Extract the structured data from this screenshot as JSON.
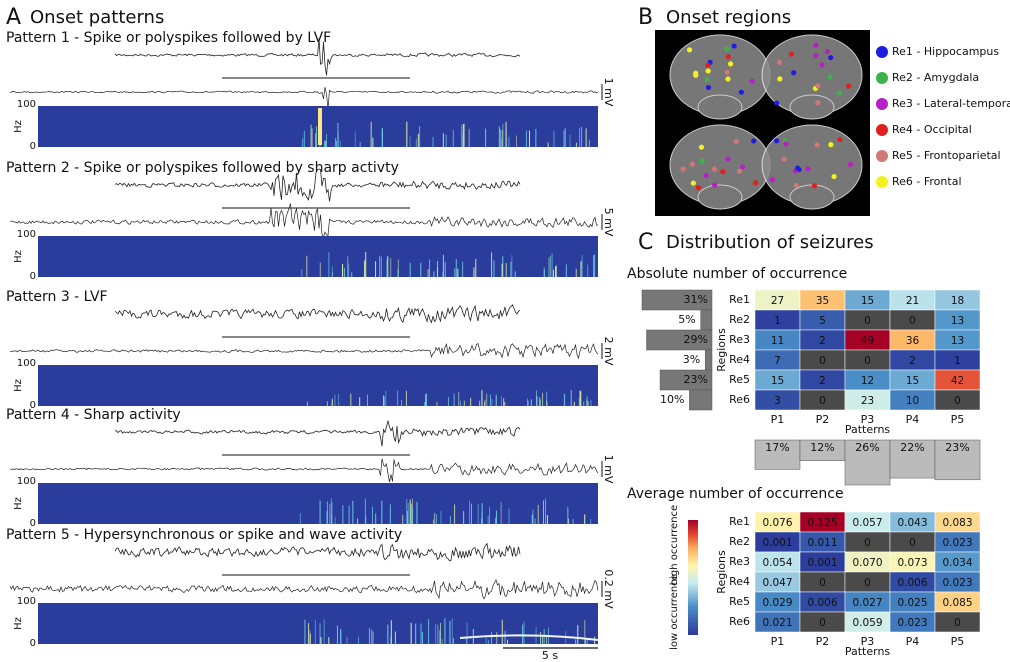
{
  "panel_a": {
    "letter": "A",
    "title": "Onset patterns",
    "patterns": [
      {
        "title": "Pattern 1 - Spike or polyspikes followed by LVF",
        "scale": "1 mV"
      },
      {
        "title": "Pattern 2 - Spike or polyspikes followed by sharp activty",
        "scale": "5 mV"
      },
      {
        "title": "Pattern 3 - LVF",
        "scale": "2 mV"
      },
      {
        "title": "Pattern 4 - Sharp activity",
        "scale": "1 mV"
      },
      {
        "title": "Pattern 5 - Hypersynchronous or spike and wave activity",
        "scale": "0.2 mV"
      }
    ],
    "freq_ticks": [
      100,
      0
    ],
    "freq_label": "Hz",
    "time_scale": "5 s"
  },
  "panel_b": {
    "letter": "B",
    "title": "Onset regions",
    "legend": [
      {
        "name": "Re1 - Hippocampus",
        "color": "#1d1de0"
      },
      {
        "name": "Re2 - Amygdala",
        "color": "#3cb44b"
      },
      {
        "name": "Re3 - Lateral-temporal",
        "color": "#b51fc4"
      },
      {
        "name": "Re4 - Occipital",
        "color": "#e02020"
      },
      {
        "name": "Re5 - Frontoparietal",
        "color": "#d07878"
      },
      {
        "name": "Re6 - Frontal",
        "color": "#f2f21e"
      }
    ]
  },
  "panel_c": {
    "letter": "C",
    "title": "Distribution of seizures",
    "absolute": {
      "title": "Absolute number of occurrence",
      "rows": [
        "Re1",
        "Re2",
        "Re3",
        "Re4",
        "Re5",
        "Re6"
      ],
      "columns": [
        "P1",
        "P2",
        "P3",
        "P4",
        "P5"
      ],
      "y_label": "Regions",
      "x_label": "Patterns",
      "values": [
        [
          27,
          35,
          15,
          21,
          18
        ],
        [
          1,
          5,
          0,
          0,
          13
        ],
        [
          11,
          2,
          49,
          36,
          13
        ],
        [
          7,
          0,
          0,
          2,
          1
        ],
        [
          15,
          2,
          12,
          15,
          42
        ],
        [
          3,
          0,
          23,
          10,
          0
        ]
      ],
      "row_percent": {
        "values": [
          31,
          5,
          29,
          3,
          23,
          10
        ],
        "value_labels": [
          "31%",
          "5%",
          "29%",
          "3%",
          "23%",
          "10%"
        ]
      },
      "column_percent": {
        "values": [
          17,
          12,
          26,
          22,
          23
        ],
        "value_labels": [
          "17%",
          "12%",
          "26%",
          "22%",
          "23%"
        ]
      }
    },
    "average": {
      "title": "Average number of occurrence",
      "rows": [
        "Re1",
        "Re2",
        "Re3",
        "Re4",
        "Re5",
        "Re6"
      ],
      "columns": [
        "P1",
        "P2",
        "P3",
        "P4",
        "P5"
      ],
      "y_label": "Regions",
      "x_label": "Patterns",
      "values": [
        [
          0.076,
          0.125,
          0.057,
          0.043,
          0.083
        ],
        [
          0.001,
          0.011,
          0,
          0,
          0.023
        ],
        [
          0.054,
          0.001,
          0.07,
          0.073,
          0.034
        ],
        [
          0.047,
          0,
          0,
          0.006,
          0.023
        ],
        [
          0.029,
          0.006,
          0.027,
          0.025,
          0.085
        ],
        [
          0.021,
          0,
          0.059,
          0.023,
          0
        ]
      ],
      "value_labels": [
        [
          "0.076",
          "0.125",
          "0.057",
          "0.043",
          "0.083"
        ],
        [
          "0.001",
          "0.011",
          "0",
          "0",
          "0.023"
        ],
        [
          "0.054",
          "0.001",
          "0.070",
          "0.073",
          "0.034"
        ],
        [
          "0.047",
          "0",
          "0",
          "0.006",
          "0.023"
        ],
        [
          "0.029",
          "0.006",
          "0.027",
          "0.025",
          "0.085"
        ],
        [
          "0.021",
          "0",
          "0.059",
          "0.023",
          "0"
        ]
      ],
      "colorbar": {
        "high": "high occurrence",
        "low": "low occurrence"
      }
    }
  }
}
